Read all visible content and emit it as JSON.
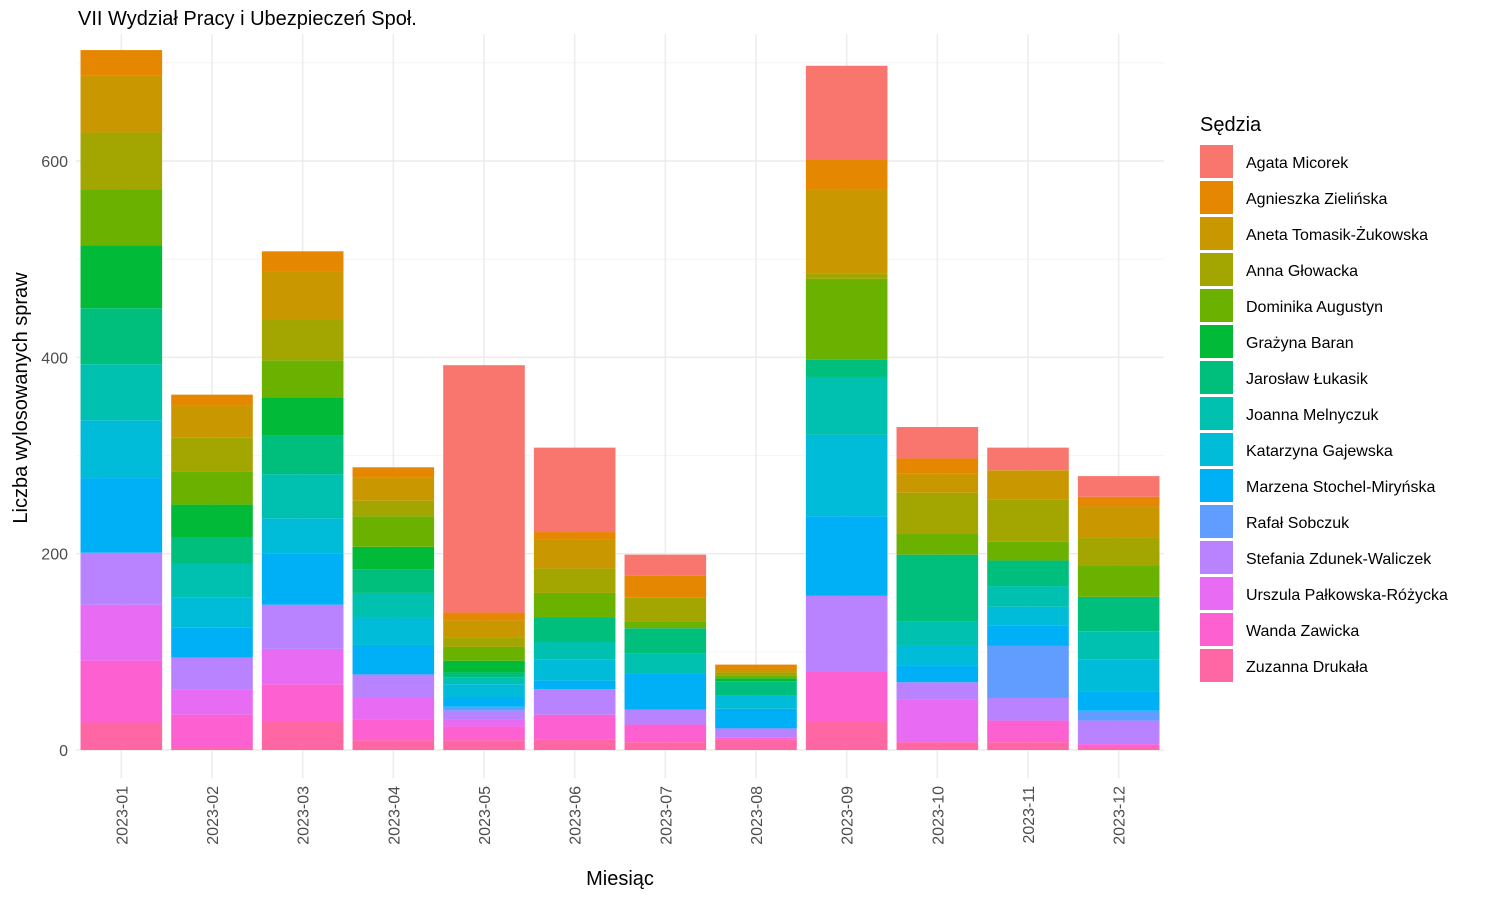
{
  "chart_data": {
    "type": "bar",
    "stacked": true,
    "title": "VII Wydział Pracy i Ubezpieczeń Społ.",
    "xlabel": "Miesiąc",
    "ylabel": "Liczba wylosowanych spraw",
    "ylim": [
      0,
      720
    ],
    "yticks": [
      0,
      200,
      400,
      600
    ],
    "legend_title": "Sędzia",
    "legend_position": "right",
    "grid": true,
    "categories": [
      "2023-01",
      "2023-02",
      "2023-03",
      "2023-04",
      "2023-05",
      "2023-06",
      "2023-07",
      "2023-08",
      "2023-09",
      "2023-10",
      "2023-11",
      "2023-12"
    ],
    "series": [
      {
        "name": "Agata Micorek",
        "color": "#F8766D",
        "values": [
          0,
          0,
          0,
          0,
          252,
          86,
          21,
          0,
          96,
          32,
          23,
          21
        ]
      },
      {
        "name": "Agnieszka Zielińska",
        "color": "#E58700",
        "values": [
          26,
          11,
          21,
          10,
          8,
          8,
          23,
          5,
          30,
          15,
          0,
          10
        ]
      },
      {
        "name": "Aneta Tomasik-Żukowska",
        "color": "#C99800",
        "values": [
          58,
          33,
          48,
          24,
          17,
          29,
          0,
          3,
          86,
          20,
          30,
          32
        ]
      },
      {
        "name": "Anna Głowacka",
        "color": "#A3A500",
        "values": [
          58,
          34,
          42,
          16,
          10,
          25,
          24,
          3,
          5,
          42,
          43,
          28
        ]
      },
      {
        "name": "Dominika Augustyn",
        "color": "#6BB100",
        "values": [
          57,
          34,
          38,
          31,
          14,
          25,
          7,
          3,
          82,
          21,
          19,
          32
        ]
      },
      {
        "name": "Grażyna Baran",
        "color": "#00BA38",
        "values": [
          64,
          33,
          39,
          23,
          12,
          0,
          0,
          3,
          0,
          0,
          0,
          0
        ]
      },
      {
        "name": "Jarosław Łukasik",
        "color": "#00BF7D",
        "values": [
          57,
          27,
          39,
          24,
          5,
          25,
          26,
          14,
          18,
          68,
          26,
          35
        ]
      },
      {
        "name": "Joanna Melnyczuk",
        "color": "#00C0AF",
        "values": [
          57,
          35,
          45,
          25,
          7,
          18,
          20,
          0,
          59,
          24,
          21,
          29
        ]
      },
      {
        "name": "Katarzyna Gajewska",
        "color": "#00BCD8",
        "values": [
          59,
          30,
          36,
          28,
          13,
          21,
          0,
          14,
          83,
          21,
          19,
          32
        ]
      },
      {
        "name": "Marzena Stochel-Miryńska",
        "color": "#00B0F6",
        "values": [
          76,
          31,
          52,
          30,
          10,
          9,
          37,
          20,
          81,
          17,
          21,
          20
        ]
      },
      {
        "name": "Rafał Sobczuk",
        "color": "#619CFF",
        "values": [
          0,
          0,
          0,
          0,
          4,
          0,
          0,
          0,
          0,
          0,
          53,
          10
        ]
      },
      {
        "name": "Stefania Zdunek-Waliczek",
        "color": "#B983FF",
        "values": [
          53,
          32,
          45,
          24,
          9,
          26,
          15,
          9,
          77,
          18,
          23,
          24
        ]
      },
      {
        "name": "Urszula Pałkowska-Różycka",
        "color": "#E76BF3",
        "values": [
          57,
          26,
          36,
          22,
          7,
          0,
          0,
          0,
          0,
          43,
          0,
          0
        ]
      },
      {
        "name": "Wanda Zawicka",
        "color": "#FD61D1",
        "values": [
          63,
          34,
          38,
          21,
          14,
          25,
          18,
          2,
          51,
          0,
          22,
          4
        ]
      },
      {
        "name": "Zuzanna Drukała",
        "color": "#FF67A4",
        "values": [
          28,
          2,
          29,
          10,
          10,
          11,
          8,
          11,
          29,
          8,
          8,
          2
        ]
      }
    ]
  }
}
